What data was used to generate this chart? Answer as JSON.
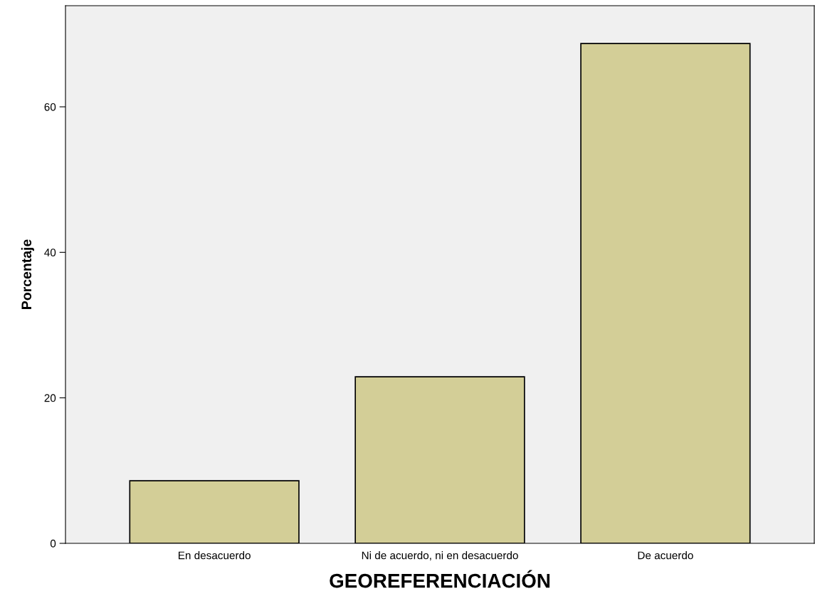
{
  "chart_data": {
    "type": "bar",
    "categories": [
      "En desacuerdo",
      "Ni de acuerdo, ni en desacuerdo",
      "De acuerdo"
    ],
    "values": [
      8.6,
      22.9,
      68.7
    ],
    "color": "#d3ce97",
    "xlabel": "GEOREFERENCIACIÓN",
    "ylabel": "Porcentaje",
    "ylim": [
      0,
      73.9
    ],
    "yticks": [
      0,
      20,
      40,
      60
    ],
    "grid": false,
    "legend": false
  }
}
